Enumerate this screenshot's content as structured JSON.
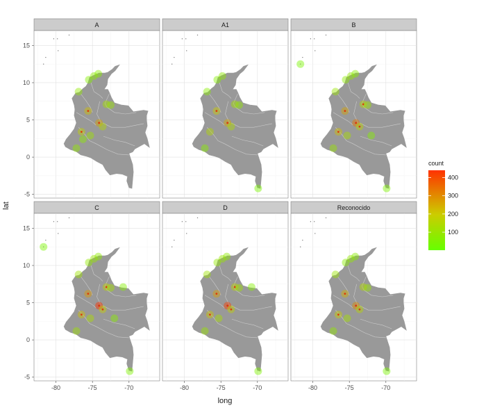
{
  "chart_data": {
    "type": "scatter",
    "facets": [
      "A",
      "A1",
      "B",
      "C",
      "D",
      "Reconocido"
    ],
    "xlabel": "long",
    "ylabel": "lat",
    "xlim": [
      -83,
      -65.8
    ],
    "ylim": [
      -5.5,
      17
    ],
    "x_ticks": [
      -80,
      -75,
      -70
    ],
    "y_ticks": [
      -5,
      0,
      5,
      10,
      15
    ],
    "grid": true,
    "legend": {
      "title": "count",
      "position": "right",
      "ticks": [
        100,
        200,
        300,
        400
      ],
      "low_color": "#66ff00",
      "high_color": "#ff3300",
      "range": [
        1,
        440
      ]
    },
    "map_color": "#999999",
    "border_color": "#cccccc",
    "panel_data": {
      "A": [
        {
          "x": -75.6,
          "y": 6.2,
          "count": 220
        },
        {
          "x": -76.5,
          "y": 3.4,
          "count": 180
        },
        {
          "x": -74.1,
          "y": 4.6,
          "count": 260
        },
        {
          "x": -73.1,
          "y": 7.1,
          "count": 120
        },
        {
          "x": -74.8,
          "y": 10.9,
          "count": 80
        },
        {
          "x": -75.5,
          "y": 10.4,
          "count": 60
        },
        {
          "x": -76.9,
          "y": 8.8,
          "count": 90
        },
        {
          "x": -72.5,
          "y": 7.0,
          "count": 100
        },
        {
          "x": -75.3,
          "y": 2.9,
          "count": 110
        },
        {
          "x": -77.2,
          "y": 1.2,
          "count": 90
        },
        {
          "x": -73.6,
          "y": 4.1,
          "count": 150
        },
        {
          "x": -74.2,
          "y": 11.2,
          "count": 70
        },
        {
          "x": -76.3,
          "y": 2.4,
          "count": 80
        }
      ],
      "A1": [
        {
          "x": -75.6,
          "y": 6.2,
          "count": 200
        },
        {
          "x": -76.5,
          "y": 3.4,
          "count": 150
        },
        {
          "x": -74.1,
          "y": 4.6,
          "count": 250
        },
        {
          "x": -73.1,
          "y": 7.1,
          "count": 120
        },
        {
          "x": -75.5,
          "y": 10.4,
          "count": 60
        },
        {
          "x": -74.8,
          "y": 10.9,
          "count": 80
        },
        {
          "x": -76.9,
          "y": 8.8,
          "count": 70
        },
        {
          "x": -72.5,
          "y": 7.0,
          "count": 90
        },
        {
          "x": -77.2,
          "y": 1.2,
          "count": 70
        },
        {
          "x": -69.9,
          "y": -4.2,
          "count": 40
        },
        {
          "x": -73.6,
          "y": 4.1,
          "count": 140
        }
      ],
      "B": [
        {
          "x": -75.6,
          "y": 6.2,
          "count": 260
        },
        {
          "x": -76.5,
          "y": 3.4,
          "count": 220
        },
        {
          "x": -74.1,
          "y": 4.6,
          "count": 330
        },
        {
          "x": -73.1,
          "y": 7.1,
          "count": 160
        },
        {
          "x": -74.8,
          "y": 10.9,
          "count": 90
        },
        {
          "x": -75.5,
          "y": 10.4,
          "count": 80
        },
        {
          "x": -76.9,
          "y": 8.8,
          "count": 100
        },
        {
          "x": -72.5,
          "y": 7.0,
          "count": 110
        },
        {
          "x": -75.3,
          "y": 2.9,
          "count": 130
        },
        {
          "x": -77.2,
          "y": 1.2,
          "count": 100
        },
        {
          "x": -73.6,
          "y": 4.1,
          "count": 170
        },
        {
          "x": -81.7,
          "y": 12.5,
          "count": 40
        },
        {
          "x": -69.9,
          "y": -4.2,
          "count": 50
        },
        {
          "x": -72.0,
          "y": 2.9,
          "count": 60
        },
        {
          "x": -74.2,
          "y": 11.2,
          "count": 70
        }
      ],
      "C": [
        {
          "x": -75.6,
          "y": 6.2,
          "count": 280
        },
        {
          "x": -76.5,
          "y": 3.4,
          "count": 220
        },
        {
          "x": -74.1,
          "y": 4.6,
          "count": 440
        },
        {
          "x": -73.1,
          "y": 7.1,
          "count": 180
        },
        {
          "x": -74.8,
          "y": 10.9,
          "count": 100
        },
        {
          "x": -75.5,
          "y": 10.4,
          "count": 90
        },
        {
          "x": -76.9,
          "y": 8.8,
          "count": 110
        },
        {
          "x": -72.5,
          "y": 7.0,
          "count": 120
        },
        {
          "x": -75.3,
          "y": 2.9,
          "count": 140
        },
        {
          "x": -77.2,
          "y": 1.2,
          "count": 110
        },
        {
          "x": -73.6,
          "y": 4.1,
          "count": 190
        },
        {
          "x": -81.7,
          "y": 12.5,
          "count": 40
        },
        {
          "x": -69.9,
          "y": -4.2,
          "count": 50
        },
        {
          "x": -72.0,
          "y": 2.9,
          "count": 70
        },
        {
          "x": -70.8,
          "y": 7.1,
          "count": 60
        },
        {
          "x": -74.2,
          "y": 11.2,
          "count": 80
        }
      ],
      "D": [
        {
          "x": -75.6,
          "y": 6.2,
          "count": 270
        },
        {
          "x": -76.5,
          "y": 3.4,
          "count": 210
        },
        {
          "x": -74.1,
          "y": 4.6,
          "count": 420
        },
        {
          "x": -73.1,
          "y": 7.1,
          "count": 170
        },
        {
          "x": -74.8,
          "y": 10.9,
          "count": 100
        },
        {
          "x": -75.5,
          "y": 10.4,
          "count": 90
        },
        {
          "x": -76.9,
          "y": 8.8,
          "count": 110
        },
        {
          "x": -72.5,
          "y": 7.0,
          "count": 110
        },
        {
          "x": -75.3,
          "y": 2.9,
          "count": 130
        },
        {
          "x": -77.2,
          "y": 1.2,
          "count": 100
        },
        {
          "x": -73.6,
          "y": 4.1,
          "count": 180
        },
        {
          "x": -69.9,
          "y": -4.2,
          "count": 50
        },
        {
          "x": -70.8,
          "y": 7.1,
          "count": 60
        },
        {
          "x": -74.2,
          "y": 11.2,
          "count": 80
        }
      ],
      "Reconocido": [
        {
          "x": -75.6,
          "y": 6.2,
          "count": 240
        },
        {
          "x": -76.5,
          "y": 3.4,
          "count": 190
        },
        {
          "x": -74.1,
          "y": 4.6,
          "count": 300
        },
        {
          "x": -73.1,
          "y": 7.1,
          "count": 150
        },
        {
          "x": -74.8,
          "y": 10.9,
          "count": 90
        },
        {
          "x": -75.5,
          "y": 10.4,
          "count": 70
        },
        {
          "x": -76.9,
          "y": 8.8,
          "count": 100
        },
        {
          "x": -72.5,
          "y": 7.0,
          "count": 100
        },
        {
          "x": -75.3,
          "y": 2.9,
          "count": 120
        },
        {
          "x": -77.2,
          "y": 1.2,
          "count": 90
        },
        {
          "x": -73.6,
          "y": 4.1,
          "count": 160
        },
        {
          "x": -69.9,
          "y": -4.2,
          "count": 40
        },
        {
          "x": -74.2,
          "y": 11.2,
          "count": 70
        }
      ]
    },
    "colombia_outline": [
      [
        -71.3,
        12.4
      ],
      [
        -71.9,
        12.2
      ],
      [
        -72.3,
        11.8
      ],
      [
        -72.9,
        11.4
      ],
      [
        -73.3,
        11.3
      ],
      [
        -74.1,
        11.3
      ],
      [
        -74.8,
        11.0
      ],
      [
        -75.4,
        10.7
      ],
      [
        -75.6,
        10.0
      ],
      [
        -75.9,
        9.5
      ],
      [
        -76.3,
        9.2
      ],
      [
        -76.8,
        8.7
      ],
      [
        -77.3,
        8.6
      ],
      [
        -77.8,
        7.9
      ],
      [
        -77.5,
        7.0
      ],
      [
        -77.4,
        6.4
      ],
      [
        -77.5,
        5.6
      ],
      [
        -77.2,
        4.6
      ],
      [
        -77.5,
        3.8
      ],
      [
        -78.1,
        3.0
      ],
      [
        -78.6,
        2.4
      ],
      [
        -78.9,
        1.8
      ],
      [
        -78.7,
        1.4
      ],
      [
        -78.0,
        1.0
      ],
      [
        -77.3,
        0.8
      ],
      [
        -76.6,
        0.3
      ],
      [
        -75.8,
        0.1
      ],
      [
        -75.2,
        -0.1
      ],
      [
        -74.4,
        -0.6
      ],
      [
        -73.6,
        -1.0
      ],
      [
        -73.2,
        -1.7
      ],
      [
        -72.6,
        -2.4
      ],
      [
        -71.7,
        -2.2
      ],
      [
        -70.9,
        -2.3
      ],
      [
        -70.2,
        -2.6
      ],
      [
        -70.3,
        -3.2
      ],
      [
        -70.0,
        -4.1
      ],
      [
        -69.6,
        -4.2
      ],
      [
        -69.4,
        -2.0
      ],
      [
        -69.5,
        -1.0
      ],
      [
        -70.0,
        0.5
      ],
      [
        -69.5,
        0.7
      ],
      [
        -69.2,
        1.1
      ],
      [
        -67.9,
        1.8
      ],
      [
        -67.2,
        1.3
      ],
      [
        -67.5,
        2.5
      ],
      [
        -67.8,
        3.3
      ],
      [
        -67.5,
        4.2
      ],
      [
        -67.6,
        5.0
      ],
      [
        -67.6,
        5.6
      ],
      [
        -67.4,
        6.2
      ],
      [
        -68.0,
        6.3
      ],
      [
        -69.4,
        6.1
      ],
      [
        -70.1,
        6.9
      ],
      [
        -71.0,
        7.0
      ],
      [
        -72.0,
        7.3
      ],
      [
        -72.4,
        8.0
      ],
      [
        -72.7,
        8.7
      ],
      [
        -72.9,
        9.1
      ],
      [
        -73.4,
        9.1
      ],
      [
        -73.0,
        9.7
      ],
      [
        -72.9,
        10.5
      ],
      [
        -72.4,
        11.2
      ],
      [
        -71.9,
        11.6
      ],
      [
        -71.3,
        12.4
      ]
    ],
    "internal_borders": [
      [
        [
          -75.2,
          10.0
        ],
        [
          -74.8,
          8.8
        ],
        [
          -74.0,
          8.3
        ],
        [
          -73.6,
          7.9
        ]
      ],
      [
        [
          -76.6,
          8.5
        ],
        [
          -75.9,
          7.6
        ],
        [
          -75.3,
          6.7
        ],
        [
          -75.0,
          6.0
        ]
      ],
      [
        [
          -77.2,
          6.0
        ],
        [
          -76.0,
          5.3
        ],
        [
          -75.1,
          4.8
        ],
        [
          -74.5,
          4.3
        ]
      ],
      [
        [
          -76.9,
          4.0
        ],
        [
          -76.0,
          3.0
        ],
        [
          -75.4,
          2.2
        ],
        [
          -74.5,
          1.8
        ]
      ],
      [
        [
          -73.0,
          6.7
        ],
        [
          -72.0,
          6.0
        ],
        [
          -70.5,
          5.8
        ],
        [
          -69.0,
          6.0
        ]
      ],
      [
        [
          -73.6,
          4.6
        ],
        [
          -72.4,
          4.0
        ],
        [
          -70.5,
          4.0
        ],
        [
          -68.0,
          4.5
        ]
      ],
      [
        [
          -73.5,
          2.8
        ],
        [
          -72.0,
          2.3
        ],
        [
          -70.5,
          2.0
        ],
        [
          -69.2,
          1.5
        ]
      ],
      [
        [
          -74.5,
          1.8
        ],
        [
          -73.0,
          1.0
        ],
        [
          -71.5,
          0.4
        ],
        [
          -70.0,
          0.3
        ]
      ],
      [
        [
          -74.0,
          7.5
        ],
        [
          -74.4,
          5.8
        ],
        [
          -73.8,
          4.6
        ]
      ],
      [
        [
          -72.7,
          8.5
        ],
        [
          -73.3,
          7.2
        ],
        [
          -73.0,
          6.7
        ]
      ]
    ],
    "islands": [
      [
        -81.7,
        12.5
      ],
      [
        -81.4,
        13.4
      ],
      [
        -80.3,
        15.9
      ],
      [
        -79.7,
        14.3
      ],
      [
        -78.2,
        16.4
      ],
      [
        -79.8,
        15.9
      ]
    ]
  }
}
